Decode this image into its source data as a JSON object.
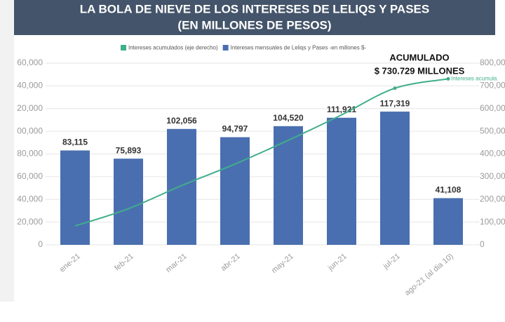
{
  "chart_data": {
    "type": "bar",
    "title": "LA BOLA DE NIEVE DE LOS INTERESES DE LELIQS Y PASES",
    "subtitle": "(EN MILLONES DE PESOS)",
    "categories": [
      "ene-21",
      "feb-21",
      "mar-21",
      "abr-21",
      "may-21",
      "jun-21",
      "jul-21",
      "ago-21 (al dia 10)"
    ],
    "series": [
      {
        "name": "Intereses acumulados (eje derecho)",
        "type": "line",
        "axis": "y2",
        "color": "#3fae8c",
        "values": [
          83115,
          159008,
          261064,
          355861,
          460381,
          572302,
          689621,
          730729
        ]
      },
      {
        "name": "Intereses mensuales de Leliqs y Pases -en millones $-",
        "type": "bar",
        "color": "#4a6fb0",
        "values": [
          83115,
          75893,
          102056,
          94797,
          104520,
          111921,
          117319,
          41108
        ],
        "value_labels": [
          "83,115",
          "75,893",
          "102,056",
          "94,797",
          "104,520",
          "111,921",
          "117,319",
          "41,108"
        ]
      }
    ],
    "ylim": [
      0,
      160000
    ],
    "yticks": [
      0,
      {
        "value": 20000,
        "label": "20,000"
      },
      {
        "value": 40000,
        "label": "40,000"
      },
      {
        "value": 60000,
        "label": "60,000"
      },
      {
        "value": 80000,
        "label": "80,000"
      },
      {
        "value": 100000,
        "label": "00,000"
      },
      {
        "value": 120000,
        "label": "20,000"
      },
      {
        "value": 140000,
        "label": "40,000"
      },
      {
        "value": 160000,
        "label": "60,000"
      }
    ],
    "y2lim": [
      0,
      800000
    ],
    "y2ticks": [
      0,
      {
        "value": 100000,
        "label": "100,00"
      },
      {
        "value": 200000,
        "label": "200,00"
      },
      {
        "value": 300000,
        "label": "300,00"
      },
      {
        "value": 400000,
        "label": "400,00"
      },
      {
        "value": 500000,
        "label": "500,00"
      },
      {
        "value": 600000,
        "label": "600,00"
      },
      {
        "value": 700000,
        "label": "700,00"
      },
      {
        "value": 800000,
        "label": "800,00"
      }
    ],
    "grid": true,
    "legend": "top",
    "annotations": [
      "ACUMULADO",
      "$ 730.729 MILLONES",
      "Intereses acumula"
    ]
  }
}
